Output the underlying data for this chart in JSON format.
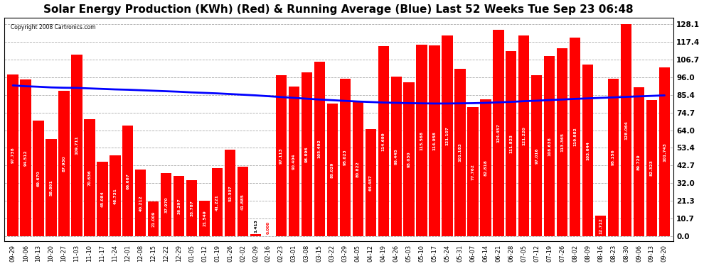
{
  "title": "Solar Energy Production (KWh) (Red) & Running Average (Blue) Last 52 Weeks Tue Sep 23 06:48",
  "copyright": "Copyright 2008 Cartronics.com",
  "bar_values": [
    97.738,
    94.512,
    69.67,
    58.891,
    87.93,
    109.711,
    70.636,
    45.084,
    48.731,
    66.667,
    40.212,
    21.009,
    37.97,
    36.297,
    33.787,
    21.549,
    41.221,
    52.307,
    41.885,
    1.413,
    0.0,
    97.113,
    90.404,
    98.896,
    105.492,
    80.029,
    95.023,
    80.822,
    64.487,
    114.699,
    96.445,
    93.03,
    115.568,
    114.958,
    121.107,
    101.183,
    77.762,
    82.818,
    124.457,
    111.823,
    121.22,
    97.016,
    108.638,
    113.365,
    119.982,
    103.644,
    12.712,
    95.156,
    128.064,
    89.729,
    82.323,
    101.743
  ],
  "x_labels": [
    "09-29",
    "10-06",
    "10-13",
    "10-20",
    "10-27",
    "11-03",
    "11-10",
    "11-17",
    "11-24",
    "12-01",
    "12-08",
    "12-15",
    "12-22",
    "12-29",
    "01-05",
    "01-12",
    "01-19",
    "01-26",
    "02-02",
    "02-09",
    "02-16",
    "02-23",
    "03-01",
    "03-08",
    "03-15",
    "03-22",
    "03-29",
    "04-05",
    "04-12",
    "04-19",
    "04-26",
    "05-03",
    "05-10",
    "05-17",
    "05-24",
    "05-31",
    "06-07",
    "06-14",
    "06-21",
    "06-28",
    "07-05",
    "07-12",
    "07-19",
    "07-26",
    "08-02",
    "08-09",
    "08-16",
    "08-23",
    "08-30",
    "09-06",
    "09-13",
    "09-20"
  ],
  "running_avg": [
    91.0,
    90.5,
    90.2,
    89.8,
    89.6,
    89.5,
    89.2,
    88.9,
    88.6,
    88.4,
    88.1,
    87.8,
    87.5,
    87.2,
    86.8,
    86.5,
    86.2,
    85.8,
    85.4,
    85.0,
    84.5,
    84.0,
    83.5,
    83.0,
    82.5,
    82.1,
    81.7,
    81.3,
    81.0,
    80.7,
    80.5,
    80.3,
    80.2,
    80.1,
    80.1,
    80.2,
    80.3,
    80.5,
    80.8,
    81.1,
    81.5,
    81.8,
    82.2,
    82.5,
    82.9,
    83.2,
    83.5,
    83.8,
    84.1,
    84.4,
    84.7,
    85.0
  ],
  "bar_color": "#ff0000",
  "line_color": "#0000ff",
  "background_color": "#ffffff",
  "plot_bg_color": "#ffffff",
  "grid_color": "#aaaaaa",
  "yticks": [
    0.0,
    10.7,
    21.3,
    32.0,
    42.7,
    53.4,
    64.0,
    74.7,
    85.4,
    96.0,
    106.7,
    117.4,
    128.1
  ],
  "ymax": 132,
  "ymin": -3,
  "title_fontsize": 11,
  "bar_label_fontsize": 4.2,
  "tick_fontsize": 7.5
}
